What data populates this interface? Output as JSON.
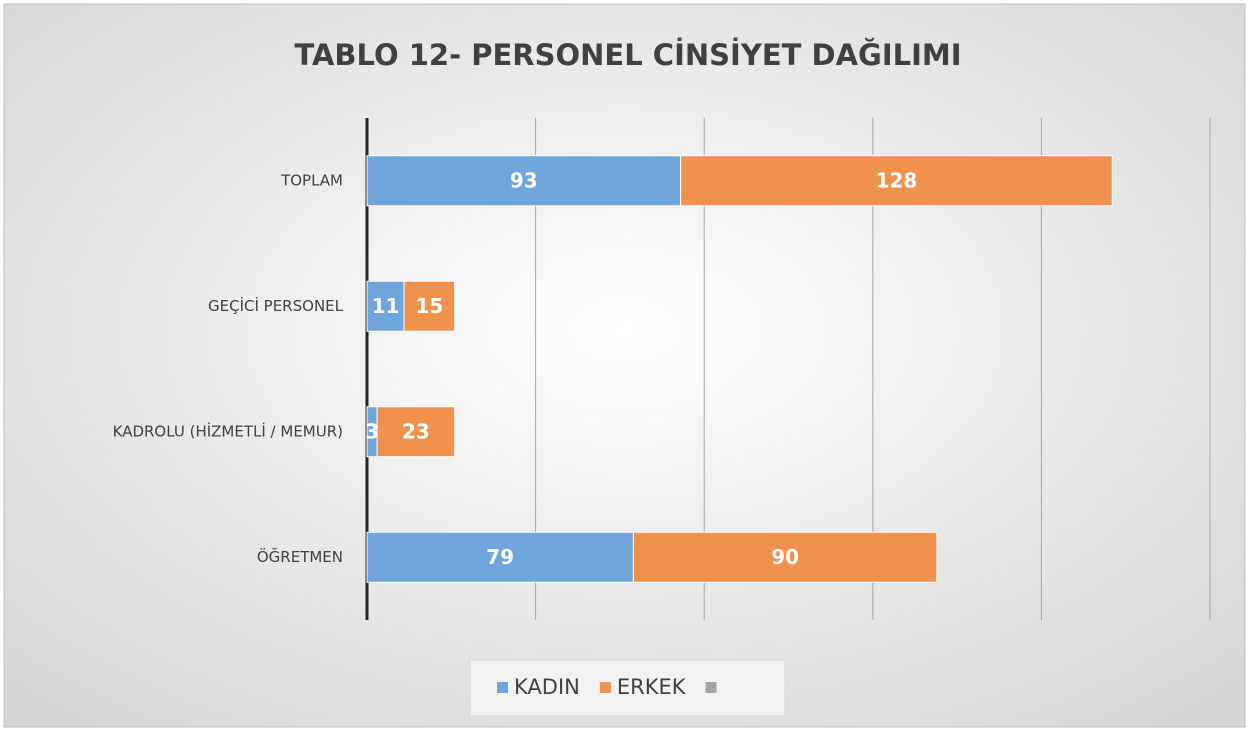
{
  "chart_data": {
    "type": "stacked-bar-horizontal",
    "title": "TABLO 12- PERSONEL CİNSİYET DAĞILIMI",
    "categories": [
      "TOPLAM",
      "GEÇİCİ PERSONEL",
      "KADROLU (HİZMETLİ / MEMUR)",
      "ÖĞRETMEN"
    ],
    "series": [
      {
        "name": "KADIN",
        "color": "#6fa5db",
        "values": [
          93,
          11,
          3,
          79
        ]
      },
      {
        "name": "ERKEK",
        "color": "#f0914d",
        "values": [
          128,
          15,
          23,
          90
        ]
      }
    ],
    "xlim": [
      0,
      250
    ],
    "xticks": [
      0,
      50,
      100,
      150,
      200,
      250
    ],
    "grid": true,
    "legend": "bottom"
  }
}
